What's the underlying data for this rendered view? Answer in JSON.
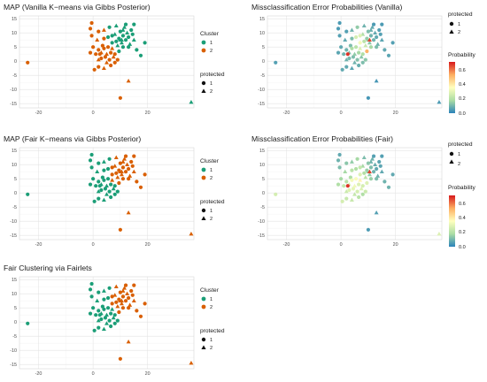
{
  "colors": {
    "cluster1": "#1b9e77",
    "cluster2": "#d95f02",
    "background": "#ffffff"
  },
  "shape_map": {
    "1": "circle",
    "2": "triangle"
  },
  "colorbar": {
    "stops": [
      "#2b83ba",
      "#abdda4",
      "#ffffbf",
      "#fdae61",
      "#d7191c"
    ],
    "range": [
      0,
      0.75
    ]
  },
  "chart_data": [
    {
      "id": "map_vanilla",
      "type": "scatter",
      "title": "MAP (Vanilla K−means via Gibbs Posterior)",
      "xlabel": "",
      "ylabel": "",
      "xlim": [
        -27,
        37
      ],
      "ylim": [
        -16.5,
        16
      ],
      "xticks": [
        "-20",
        "0",
        "20"
      ],
      "xtick_values": [
        -20,
        0,
        20
      ],
      "yticks": [
        "15",
        "10",
        "5",
        "0",
        "-5",
        "-10",
        "-15"
      ],
      "ytick_values": [
        15,
        10,
        5,
        0,
        -5,
        -10,
        -15
      ],
      "grid": true,
      "legend": {
        "placement": "right",
        "color_title": "Cluster",
        "color_entries": [
          "1",
          "2"
        ],
        "shape_title": "protected",
        "shape_entries": [
          "1",
          "2"
        ]
      },
      "color_by": "cluster",
      "point_label_key": "label_vanilla"
    },
    {
      "id": "mis_vanilla",
      "type": "scatter",
      "title": "Missclassification Error Probabilities (Vanilla)",
      "xlabel": "",
      "ylabel": "",
      "xlim": [
        -27,
        37
      ],
      "ylim": [
        -16.5,
        16
      ],
      "xticks": [
        "-20",
        "0",
        "20"
      ],
      "xtick_values": [
        -20,
        0,
        20
      ],
      "yticks": [
        "15",
        "10",
        "5",
        "0",
        "-5",
        "-10",
        "-15"
      ],
      "ytick_values": [
        15,
        10,
        5,
        0,
        -5,
        -10,
        -15
      ],
      "grid": true,
      "legend": {
        "placement": "right",
        "shape_title": "protected",
        "shape_entries": [
          "1",
          "2"
        ],
        "colorbar_title": "Probability",
        "colorbar_ticks": [
          "0.6",
          "0.4",
          "0.2",
          "0.0"
        ],
        "colorbar_tick_values": [
          0.6,
          0.4,
          0.2,
          0.0
        ]
      },
      "color_by": "probability",
      "prob_key": "prob_vanilla"
    },
    {
      "id": "map_fair",
      "type": "scatter",
      "title": "MAP (Fair K−means via Gibbs Posterior)",
      "xlabel": "",
      "ylabel": "",
      "xlim": [
        -27,
        37
      ],
      "ylim": [
        -16.5,
        16
      ],
      "xticks": [
        "-20",
        "0",
        "20"
      ],
      "xtick_values": [
        -20,
        0,
        20
      ],
      "yticks": [
        "15",
        "10",
        "5",
        "0",
        "-5",
        "-10",
        "-15"
      ],
      "ytick_values": [
        15,
        10,
        5,
        0,
        -5,
        -10,
        -15
      ],
      "grid": true,
      "legend": {
        "placement": "right",
        "color_title": "Cluster",
        "color_entries": [
          "1",
          "2"
        ],
        "shape_title": "protected",
        "shape_entries": [
          "1",
          "2"
        ]
      },
      "color_by": "cluster",
      "point_label_key": "label_fair"
    },
    {
      "id": "mis_fair",
      "type": "scatter",
      "title": "Missclassification Error Probabilities (Fair)",
      "xlabel": "",
      "ylabel": "",
      "xlim": [
        -27,
        37
      ],
      "ylim": [
        -16.5,
        16
      ],
      "xticks": [
        "-20",
        "0",
        "20"
      ],
      "xtick_values": [
        -20,
        0,
        20
      ],
      "yticks": [
        "15",
        "10",
        "5",
        "0",
        "-5",
        "-10",
        "-15"
      ],
      "ytick_values": [
        15,
        10,
        5,
        0,
        -5,
        -10,
        -15
      ],
      "grid": true,
      "legend": {
        "placement": "right",
        "shape_title": "protected",
        "shape_entries": [
          "1",
          "2"
        ],
        "colorbar_title": "Probability",
        "colorbar_ticks": [
          "0.6",
          "0.4",
          "0.2",
          "0.0"
        ],
        "colorbar_tick_values": [
          0.6,
          0.4,
          0.2,
          0.0
        ]
      },
      "color_by": "probability",
      "prob_key": "prob_fair"
    },
    {
      "id": "fairlets",
      "type": "scatter",
      "title": "Fair Clustering via Fairlets",
      "xlabel": "",
      "ylabel": "",
      "xlim": [
        -27,
        37
      ],
      "ylim": [
        -16.5,
        16
      ],
      "xticks": [
        "-20",
        "0",
        "20"
      ],
      "xtick_values": [
        -20,
        0,
        20
      ],
      "yticks": [
        "15",
        "10",
        "5",
        "0",
        "-5",
        "-10",
        "-15"
      ],
      "ytick_values": [
        15,
        10,
        5,
        0,
        -5,
        -10,
        -15
      ],
      "grid": true,
      "legend": {
        "placement": "right",
        "color_title": "Cluster",
        "color_entries": [
          "1",
          "2"
        ],
        "shape_title": "protected",
        "shape_entries": [
          "1",
          "2"
        ]
      },
      "color_by": "cluster",
      "point_label_key": "label_fairlets"
    }
  ],
  "points": [
    {
      "x": -24,
      "y": -0.5,
      "protected": 1,
      "label_vanilla": 2,
      "label_fair": 1,
      "label_fairlets": 1,
      "prob_vanilla": 0.06,
      "prob_fair": 0.28
    },
    {
      "x": 36,
      "y": -14.5,
      "protected": 2,
      "label_vanilla": 1,
      "label_fair": 2,
      "label_fairlets": 2,
      "prob_vanilla": 0.05,
      "prob_fair": 0.3
    },
    {
      "x": 13,
      "y": -7,
      "protected": 2,
      "label_vanilla": 2,
      "label_fair": 2,
      "label_fairlets": 2,
      "prob_vanilla": 0.04,
      "prob_fair": 0.06
    },
    {
      "x": 10,
      "y": -13,
      "protected": 1,
      "label_vanilla": 2,
      "label_fair": 2,
      "label_fairlets": 2,
      "prob_vanilla": 0.04,
      "prob_fair": 0.05
    },
    {
      "x": 0.5,
      "y": -3,
      "protected": 1,
      "label_vanilla": 2,
      "label_fair": 1,
      "label_fairlets": 1,
      "prob_vanilla": 0.08,
      "prob_fair": 0.28
    },
    {
      "x": 2,
      "y": -2,
      "protected": 1,
      "label_vanilla": 2,
      "label_fair": 1,
      "label_fairlets": 1,
      "prob_vanilla": 0.08,
      "prob_fair": 0.25
    },
    {
      "x": 4,
      "y": -2.5,
      "protected": 2,
      "label_vanilla": 2,
      "label_fair": 1,
      "label_fairlets": 1,
      "prob_vanilla": 0.07,
      "prob_fair": 0.25
    },
    {
      "x": 6.5,
      "y": -1.5,
      "protected": 1,
      "label_vanilla": 2,
      "label_fair": 1,
      "label_fairlets": 1,
      "prob_vanilla": 0.09,
      "prob_fair": 0.22
    },
    {
      "x": 5,
      "y": -0.5,
      "protected": 2,
      "label_vanilla": 2,
      "label_fair": 1,
      "label_fairlets": 1,
      "prob_vanilla": 0.1,
      "prob_fair": 0.24
    },
    {
      "x": 8,
      "y": -0.5,
      "protected": 1,
      "label_vanilla": 2,
      "label_fair": 1,
      "label_fairlets": 1,
      "prob_vanilla": 0.12,
      "prob_fair": 0.2
    },
    {
      "x": 2,
      "y": 0.5,
      "protected": 2,
      "label_vanilla": 2,
      "label_fair": 1,
      "label_fairlets": 1,
      "prob_vanilla": 0.1,
      "prob_fair": 0.26
    },
    {
      "x": 3,
      "y": 1,
      "protected": 1,
      "label_vanilla": 2,
      "label_fair": 1,
      "label_fairlets": 1,
      "prob_vanilla": 0.11,
      "prob_fair": 0.3
    },
    {
      "x": 4.5,
      "y": 1.5,
      "protected": 1,
      "label_vanilla": 2,
      "label_fair": 1,
      "label_fairlets": 1,
      "prob_vanilla": 0.12,
      "prob_fair": 0.32
    },
    {
      "x": 6,
      "y": 0.5,
      "protected": 1,
      "label_vanilla": 2,
      "label_fair": 1,
      "label_fairlets": 1,
      "prob_vanilla": 0.13,
      "prob_fair": 0.28
    },
    {
      "x": 7.5,
      "y": 1.5,
      "protected": 2,
      "label_vanilla": 2,
      "label_fair": 1,
      "label_fairlets": 1,
      "prob_vanilla": 0.14,
      "prob_fair": 0.3
    },
    {
      "x": 9,
      "y": 0.5,
      "protected": 1,
      "label_vanilla": 2,
      "label_fair": 1,
      "label_fairlets": 1,
      "prob_vanilla": 0.14,
      "prob_fair": 0.26
    },
    {
      "x": 1,
      "y": 2.5,
      "protected": 1,
      "label_vanilla": 2,
      "label_fair": 1,
      "label_fairlets": 1,
      "prob_vanilla": 0.1,
      "prob_fair": 0.24
    },
    {
      "x": 3,
      "y": 3,
      "protected": 2,
      "label_vanilla": 2,
      "label_fair": 1,
      "label_fairlets": 1,
      "prob_vanilla": 0.13,
      "prob_fair": 0.3
    },
    {
      "x": 5,
      "y": 2.5,
      "protected": 2,
      "label_vanilla": 2,
      "label_fair": 1,
      "label_fairlets": 1,
      "prob_vanilla": 0.15,
      "prob_fair": 0.34
    },
    {
      "x": 6.5,
      "y": 3,
      "protected": 1,
      "label_vanilla": 2,
      "label_fair": 1,
      "label_fairlets": 1,
      "prob_vanilla": 0.18,
      "prob_fair": 0.3
    },
    {
      "x": 8,
      "y": 2.5,
      "protected": 1,
      "label_vanilla": 2,
      "label_fair": 1,
      "label_fairlets": 1,
      "prob_vanilla": 0.2,
      "prob_fair": 0.28
    },
    {
      "x": 4,
      "y": 4.5,
      "protected": 1,
      "label_vanilla": 2,
      "label_fair": 1,
      "label_fairlets": 1,
      "prob_vanilla": 0.2,
      "prob_fair": 0.35
    },
    {
      "x": 2,
      "y": 4,
      "protected": 1,
      "label_vanilla": 2,
      "label_fair": 1,
      "label_fairlets": 1,
      "prob_vanilla": 0.1,
      "prob_fair": 0.22
    },
    {
      "x": 0,
      "y": 5,
      "protected": 1,
      "label_vanilla": 2,
      "label_fair": 1,
      "label_fairlets": 1,
      "prob_vanilla": 0.08,
      "prob_fair": 0.18
    },
    {
      "x": 5.5,
      "y": 5,
      "protected": 1,
      "label_vanilla": 2,
      "label_fair": 1,
      "label_fairlets": 1,
      "prob_vanilla": 0.22,
      "prob_fair": 0.36
    },
    {
      "x": 3.5,
      "y": 5.5,
      "protected": 1,
      "label_vanilla": 2,
      "label_fair": 1,
      "label_fairlets": 1,
      "prob_vanilla": 0.12,
      "prob_fair": 0.2
    },
    {
      "x": 7,
      "y": 4.5,
      "protected": 2,
      "label_vanilla": 2,
      "label_fair": 2,
      "label_fairlets": 1,
      "prob_vanilla": 0.3,
      "prob_fair": 0.4
    },
    {
      "x": 9.5,
      "y": 3.5,
      "protected": 1,
      "label_vanilla": 1,
      "label_fair": 2,
      "label_fairlets": 2,
      "prob_vanilla": 0.55,
      "prob_fair": 0.3
    },
    {
      "x": -1,
      "y": 3,
      "protected": 1,
      "label_vanilla": 2,
      "label_fair": 1,
      "label_fairlets": 1,
      "prob_vanilla": 0.07,
      "prob_fair": 0.2
    },
    {
      "x": -0.5,
      "y": 9,
      "protected": 1,
      "label_vanilla": 2,
      "label_fair": 1,
      "label_fairlets": 1,
      "prob_vanilla": 0.06,
      "prob_fair": 0.12
    },
    {
      "x": -1,
      "y": 11.5,
      "protected": 1,
      "label_vanilla": 2,
      "label_fair": 1,
      "label_fairlets": 1,
      "prob_vanilla": 0.05,
      "prob_fair": 0.1
    },
    {
      "x": -0.5,
      "y": 13.5,
      "protected": 1,
      "label_vanilla": 2,
      "label_fair": 1,
      "label_fairlets": 1,
      "prob_vanilla": 0.05,
      "prob_fair": 0.08
    },
    {
      "x": 2,
      "y": 10.5,
      "protected": 1,
      "label_vanilla": 2,
      "label_fair": 1,
      "label_fairlets": 1,
      "prob_vanilla": 0.06,
      "prob_fair": 0.14
    },
    {
      "x": 1.5,
      "y": 7.5,
      "protected": 2,
      "label_vanilla": 2,
      "label_fair": 1,
      "label_fairlets": 1,
      "prob_vanilla": 0.08,
      "prob_fair": 0.18
    },
    {
      "x": 4,
      "y": 8,
      "protected": 1,
      "label_vanilla": 2,
      "label_fair": 1,
      "label_fairlets": 1,
      "prob_vanilla": 0.12,
      "prob_fair": 0.22
    },
    {
      "x": 5.5,
      "y": 8.5,
      "protected": 1,
      "label_vanilla": 1,
      "label_fair": 1,
      "label_fairlets": 1,
      "prob_vanilla": 0.28,
      "prob_fair": 0.2
    },
    {
      "x": 7,
      "y": 6.5,
      "protected": 1,
      "label_vanilla": 1,
      "label_fair": 2,
      "label_fairlets": 2,
      "prob_vanilla": 0.35,
      "prob_fair": 0.3
    },
    {
      "x": 8,
      "y": 9.5,
      "protected": 2,
      "label_vanilla": 1,
      "label_fair": 2,
      "label_fairlets": 2,
      "prob_vanilla": 0.2,
      "prob_fair": 0.18
    },
    {
      "x": 8.5,
      "y": 7,
      "protected": 1,
      "label_vanilla": 1,
      "label_fair": 2,
      "label_fairlets": 2,
      "prob_vanilla": 0.22,
      "prob_fair": 0.2
    },
    {
      "x": 9,
      "y": 5.5,
      "protected": 2,
      "label_vanilla": 1,
      "label_fair": 2,
      "label_fairlets": 2,
      "prob_vanilla": 0.25,
      "prob_fair": 0.22
    },
    {
      "x": 9.5,
      "y": 8,
      "protected": 1,
      "label_vanilla": 1,
      "label_fair": 2,
      "label_fairlets": 2,
      "prob_vanilla": 0.15,
      "prob_fair": 0.16
    },
    {
      "x": 10,
      "y": 10.5,
      "protected": 1,
      "label_vanilla": 1,
      "label_fair": 2,
      "label_fairlets": 2,
      "prob_vanilla": 0.12,
      "prob_fair": 0.14
    },
    {
      "x": 10.5,
      "y": 6.5,
      "protected": 2,
      "label_vanilla": 1,
      "label_fair": 2,
      "label_fairlets": 2,
      "prob_vanilla": 0.14,
      "prob_fair": 0.15
    },
    {
      "x": 11,
      "y": 9,
      "protected": 1,
      "label_vanilla": 1,
      "label_fair": 2,
      "label_fairlets": 2,
      "prob_vanilla": 0.1,
      "prob_fair": 0.12
    },
    {
      "x": 11.5,
      "y": 12,
      "protected": 2,
      "label_vanilla": 1,
      "label_fair": 2,
      "label_fairlets": 2,
      "prob_vanilla": 0.08,
      "prob_fair": 0.1
    },
    {
      "x": 12,
      "y": 7.5,
      "protected": 1,
      "label_vanilla": 1,
      "label_fair": 2,
      "label_fairlets": 2,
      "prob_vanilla": 0.1,
      "prob_fair": 0.1
    },
    {
      "x": 12.5,
      "y": 10,
      "protected": 2,
      "label_vanilla": 1,
      "label_fair": 2,
      "label_fairlets": 2,
      "prob_vanilla": 0.08,
      "prob_fair": 0.09
    },
    {
      "x": 13,
      "y": 8.5,
      "protected": 1,
      "label_vanilla": 1,
      "label_fair": 2,
      "label_fairlets": 2,
      "prob_vanilla": 0.08,
      "prob_fair": 0.08
    },
    {
      "x": 13.5,
      "y": 6,
      "protected": 2,
      "label_vanilla": 1,
      "label_fair": 2,
      "label_fairlets": 2,
      "prob_vanilla": 0.1,
      "prob_fair": 0.1
    },
    {
      "x": 14,
      "y": 11,
      "protected": 1,
      "label_vanilla": 1,
      "label_fair": 2,
      "label_fairlets": 2,
      "prob_vanilla": 0.06,
      "prob_fair": 0.07
    },
    {
      "x": 14.5,
      "y": 9.5,
      "protected": 1,
      "label_vanilla": 1,
      "label_fair": 2,
      "label_fairlets": 2,
      "prob_vanilla": 0.06,
      "prob_fair": 0.07
    },
    {
      "x": 15,
      "y": 7.5,
      "protected": 2,
      "label_vanilla": 1,
      "label_fair": 2,
      "label_fairlets": 2,
      "prob_vanilla": 0.07,
      "prob_fair": 0.08
    },
    {
      "x": 12,
      "y": 13,
      "protected": 1,
      "label_vanilla": 1,
      "label_fair": 2,
      "label_fairlets": 2,
      "prob_vanilla": 0.05,
      "prob_fair": 0.06
    },
    {
      "x": 11,
      "y": 5,
      "protected": 1,
      "label_vanilla": 1,
      "label_fair": 2,
      "label_fairlets": 2,
      "prob_vanilla": 0.18,
      "prob_fair": 0.16
    },
    {
      "x": 10,
      "y": 7.5,
      "protected": 2,
      "label_vanilla": 1,
      "label_fair": 2,
      "label_fairlets": 2,
      "prob_vanilla": 0.16,
      "prob_fair": 0.15
    },
    {
      "x": 13,
      "y": 5,
      "protected": 1,
      "label_vanilla": 1,
      "label_fair": 2,
      "label_fairlets": 2,
      "prob_vanilla": 0.12,
      "prob_fair": 0.12
    },
    {
      "x": 16,
      "y": 4,
      "protected": 1,
      "label_vanilla": 1,
      "label_fair": 2,
      "label_fairlets": 2,
      "prob_vanilla": 0.08,
      "prob_fair": 0.1
    },
    {
      "x": 17.5,
      "y": 2,
      "protected": 1,
      "label_vanilla": 1,
      "label_fair": 2,
      "label_fairlets": 2,
      "prob_vanilla": 0.07,
      "prob_fair": 0.1
    },
    {
      "x": 19,
      "y": 6.5,
      "protected": 1,
      "label_vanilla": 1,
      "label_fair": 2,
      "label_fairlets": 2,
      "prob_vanilla": 0.06,
      "prob_fair": 0.08
    },
    {
      "x": 15,
      "y": 13,
      "protected": 1,
      "label_vanilla": 1,
      "label_fair": 2,
      "label_fairlets": 2,
      "prob_vanilla": 0.05,
      "prob_fair": 0.06
    },
    {
      "x": 11,
      "y": 11,
      "protected": 2,
      "label_vanilla": 1,
      "label_fair": 2,
      "label_fairlets": 2,
      "prob_vanilla": 0.09,
      "prob_fair": 0.1
    },
    {
      "x": 10.5,
      "y": 7.5,
      "protected": 2,
      "label_vanilla": 1,
      "label_fair": 2,
      "label_fairlets": 2,
      "prob_vanilla": 0.7,
      "prob_fair": 0.7
    },
    {
      "x": 2.5,
      "y": 2.5,
      "protected": 1,
      "label_vanilla": 2,
      "label_fair": 1,
      "label_fairlets": 1,
      "prob_vanilla": 0.72,
      "prob_fair": 0.72
    },
    {
      "x": 7,
      "y": 9,
      "protected": 1,
      "label_vanilla": 1,
      "label_fair": 2,
      "label_fairlets": 2,
      "prob_vanilla": 0.3,
      "prob_fair": 0.24
    },
    {
      "x": 4,
      "y": 11,
      "protected": 2,
      "label_vanilla": 2,
      "label_fair": 1,
      "label_fairlets": 1,
      "prob_vanilla": 0.1,
      "prob_fair": 0.15
    },
    {
      "x": 6,
      "y": 12,
      "protected": 1,
      "label_vanilla": 1,
      "label_fair": 1,
      "label_fairlets": 1,
      "prob_vanilla": 0.15,
      "prob_fair": 0.18
    },
    {
      "x": 8.5,
      "y": 12.5,
      "protected": 2,
      "label_vanilla": 1,
      "label_fair": 2,
      "label_fairlets": 2,
      "prob_vanilla": 0.1,
      "prob_fair": 0.12
    }
  ]
}
